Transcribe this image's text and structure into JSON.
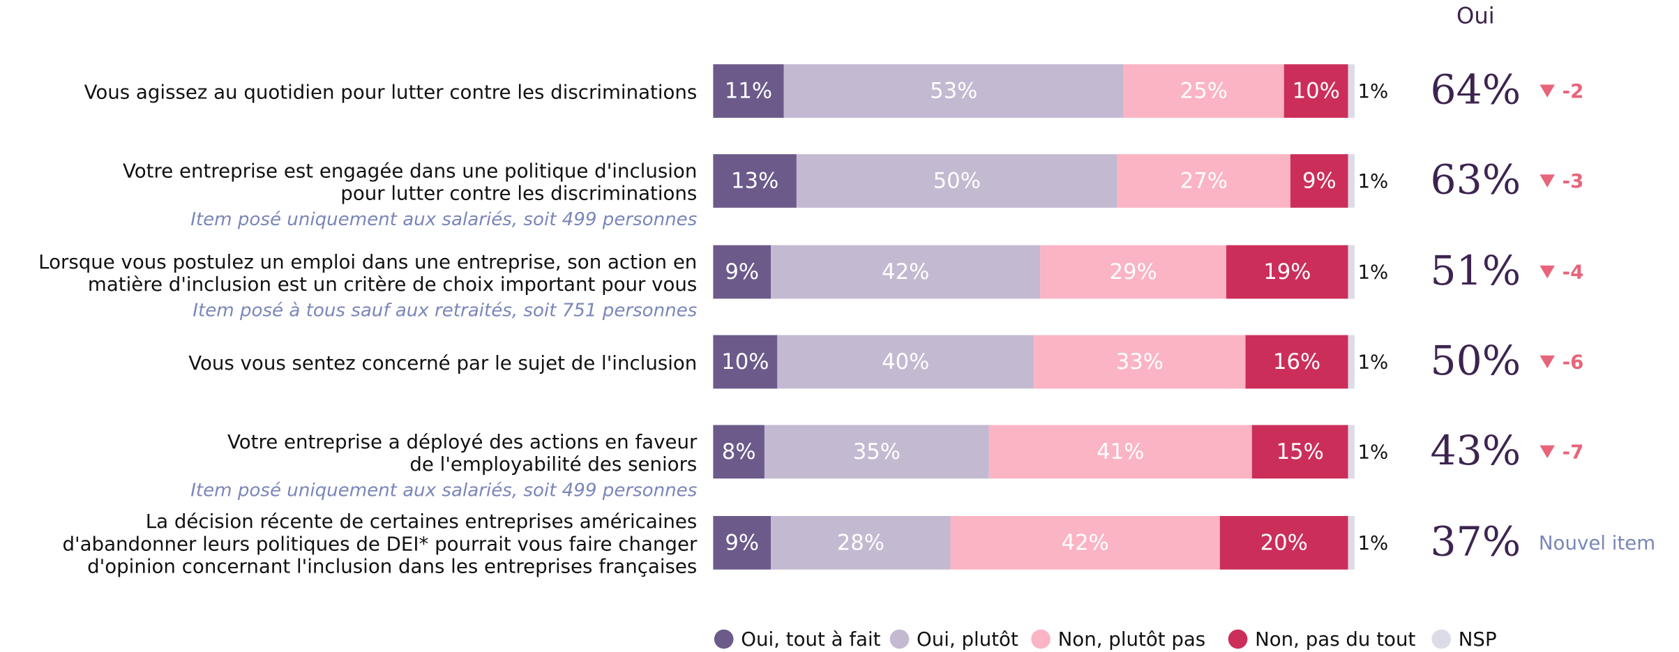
{
  "chart_data": {
    "type": "stacked-bar-horizontal",
    "column_header": "Oui",
    "categories": [
      [
        "Vous agissez au quotidien pour lutter contre les discriminations"
      ],
      [
        "Votre entreprise est engagée dans une politique d'inclusion",
        "pour lutter contre les discriminations"
      ],
      [
        "Lorsque vous postulez un emploi dans une entreprise, son action en",
        "matière d'inclusion est un critère de choix important pour vous"
      ],
      [
        "Vous vous sentez concerné par le sujet de l'inclusion"
      ],
      [
        "Votre entreprise a déployé des actions en faveur",
        "de l'employabilité des seniors"
      ],
      [
        "La décision récente de certaines entreprises américaines",
        "d'abandonner leurs politiques de DEI* pourrait vous faire changer",
        "d'opinion concernant l'inclusion dans les entreprises françaises"
      ]
    ],
    "notes": [
      null,
      "Item posé uniquement aux salariés, soit 499 personnes",
      "Item posé à tous sauf aux retraités, soit 751 personnes",
      null,
      "Item posé uniquement aux salariés, soit 499 personnes",
      null
    ],
    "xlim": [
      0,
      100
    ],
    "series": [
      {
        "name": "Oui, tout à fait",
        "color": "#6b5a8a",
        "values": [
          11,
          13,
          9,
          10,
          8,
          9
        ],
        "value_labels": [
          "11%",
          "13%",
          "9%",
          "10%",
          "8%",
          "9%"
        ]
      },
      {
        "name": "Oui, plutôt",
        "color": "#c3b9d1",
        "values": [
          53,
          50,
          42,
          40,
          35,
          28
        ],
        "value_labels": [
          "53%",
          "50%",
          "42%",
          "40%",
          "35%",
          "28%"
        ]
      },
      {
        "name": "Non, plutôt pas",
        "color": "#fbb4c4",
        "values": [
          25,
          27,
          29,
          33,
          41,
          42
        ],
        "value_labels": [
          "25%",
          "27%",
          "29%",
          "33%",
          "41%",
          "42%"
        ]
      },
      {
        "name": "Non, pas du tout",
        "color": "#cc2e5a",
        "values": [
          10,
          9,
          19,
          16,
          15,
          20
        ],
        "value_labels": [
          "10%",
          "9%",
          "19%",
          "16%",
          "15%",
          "20%"
        ]
      },
      {
        "name": "NSP",
        "color": "#dcdce8",
        "values": [
          1,
          1,
          1,
          1,
          1,
          1
        ],
        "value_labels": [
          "1%",
          "1%",
          "1%",
          "1%",
          "1%",
          "1%"
        ]
      }
    ],
    "oui_totals": [
      64,
      63,
      51,
      50,
      43,
      37
    ],
    "oui_labels": [
      "64%",
      "63%",
      "51%",
      "50%",
      "43%",
      "37%"
    ],
    "changes": [
      -2,
      -3,
      -4,
      -6,
      -7,
      null
    ],
    "change_labels": [
      "-2",
      "-3",
      "-4",
      "-6",
      "-7",
      "Nouvel item"
    ]
  }
}
